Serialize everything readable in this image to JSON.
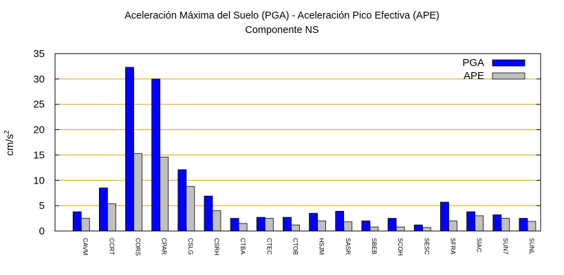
{
  "chart_data": {
    "type": "bar",
    "title": "Aceleración Máxima del Suelo (PGA) -  Aceleración Pico Efectiva (APE)",
    "subtitle": "Componente NS",
    "ylabel_base": "cm/s",
    "ylabel_exp": "2",
    "xlabel": "",
    "ylim": [
      0,
      35
    ],
    "yticks": [
      0,
      5,
      10,
      15,
      20,
      25,
      30,
      35
    ],
    "grid": true,
    "legend_position": "top-right",
    "categories": [
      "CAVM",
      "CCRT",
      "CORS",
      "CPAR",
      "CSLG",
      "CSRH",
      "CTBA",
      "CTEC",
      "CTOB",
      "HSJM",
      "SASR",
      "SBEB",
      "SCOH",
      "SESC",
      "SFRA",
      "SIAC",
      "SUN7",
      "SUNL"
    ],
    "series": [
      {
        "name": "PGA",
        "color": "#0000ff",
        "values": [
          3.8,
          8.5,
          32.3,
          30.0,
          12.1,
          6.9,
          2.5,
          2.7,
          2.7,
          3.5,
          3.9,
          2.0,
          2.5,
          1.2,
          5.7,
          3.8,
          3.2,
          2.5
        ]
      },
      {
        "name": "APE",
        "color": "#c0c0c0",
        "values": [
          2.5,
          5.4,
          15.3,
          14.6,
          8.8,
          4.0,
          1.5,
          2.5,
          1.2,
          2.0,
          1.8,
          0.8,
          0.8,
          0.7,
          2.0,
          3.0,
          2.5,
          1.9
        ]
      }
    ]
  }
}
